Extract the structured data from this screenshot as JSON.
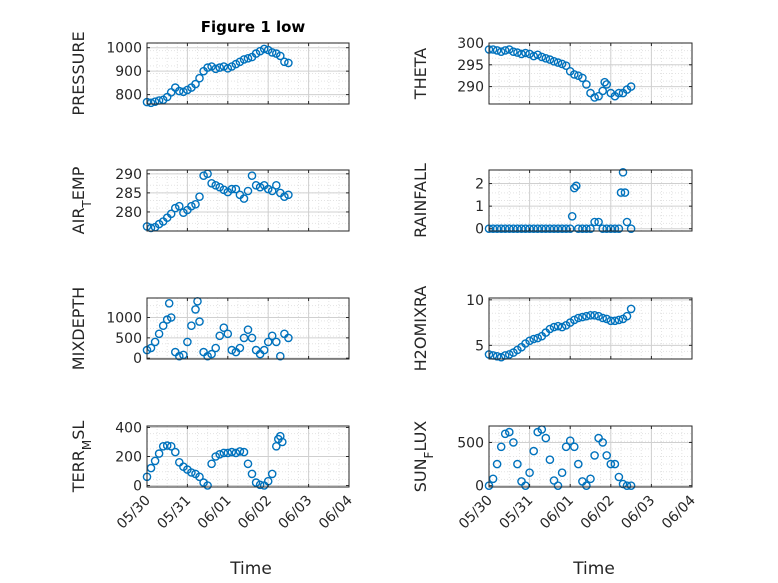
{
  "figure": {
    "title": "Figure 1 low",
    "xlabel": "Time"
  },
  "colors": {
    "marker": "#0072BD",
    "axis": "#262626",
    "grid": "#d0d0d0",
    "background": "#ffffff"
  },
  "chart_data": [
    {
      "type": "scatter",
      "name": "PRESSURE",
      "ylabel": "PRESSURE",
      "title": "Figure 1 low",
      "xlim": [
        0,
        5
      ],
      "ylim": [
        760,
        1020
      ],
      "yticks": [
        800,
        900,
        1000
      ],
      "ytick_labels": [
        "800",
        "900",
        "1000"
      ],
      "xticks": [
        0,
        1,
        2,
        3,
        4,
        5
      ],
      "xtick_labels": [],
      "grid": true,
      "minor_grid": true,
      "x": [
        0,
        0.1,
        0.2,
        0.3,
        0.4,
        0.5,
        0.6,
        0.7,
        0.8,
        0.9,
        1.0,
        1.1,
        1.2,
        1.3,
        1.4,
        1.5,
        1.6,
        1.7,
        1.8,
        1.9,
        2.0,
        2.1,
        2.2,
        2.3,
        2.4,
        2.5,
        2.6,
        2.7,
        2.8,
        2.9,
        3.0,
        3.1,
        3.2,
        3.3,
        3.4,
        3.5
      ],
      "y": [
        768,
        765,
        770,
        775,
        778,
        790,
        810,
        830,
        815,
        812,
        820,
        830,
        845,
        870,
        900,
        915,
        920,
        910,
        915,
        920,
        912,
        920,
        930,
        940,
        950,
        955,
        960,
        975,
        985,
        995,
        990,
        980,
        975,
        965,
        940,
        935
      ]
    },
    {
      "type": "scatter",
      "name": "THETA",
      "ylabel": "THETA",
      "xlim": [
        0,
        5
      ],
      "ylim": [
        286,
        300
      ],
      "yticks": [
        290,
        295,
        300
      ],
      "ytick_labels": [
        "290",
        "295",
        "300"
      ],
      "xticks": [
        0,
        1,
        2,
        3,
        4,
        5
      ],
      "xtick_labels": [],
      "grid": true,
      "minor_grid": true,
      "x": [
        0,
        0.1,
        0.2,
        0.3,
        0.4,
        0.5,
        0.6,
        0.7,
        0.8,
        0.9,
        1.0,
        1.1,
        1.2,
        1.3,
        1.4,
        1.5,
        1.6,
        1.7,
        1.8,
        1.9,
        2.0,
        2.1,
        2.2,
        2.3,
        2.4,
        2.5,
        2.6,
        2.7,
        2.8,
        2.85,
        2.9,
        3.0,
        3.1,
        3.2,
        3.3,
        3.4,
        3.5
      ],
      "y": [
        298.5,
        298.5,
        298.3,
        298.0,
        298.3,
        298.5,
        298.0,
        297.8,
        297.5,
        297.7,
        297.5,
        297.0,
        297.3,
        296.8,
        296.5,
        296.2,
        295.8,
        295.5,
        295.2,
        294.8,
        293.5,
        292.8,
        292.5,
        292.0,
        290.5,
        288.5,
        287.5,
        287.8,
        289.0,
        291.0,
        290.5,
        288.5,
        287.8,
        288.5,
        288.5,
        289.3,
        290.0
      ]
    },
    {
      "type": "scatter",
      "name": "AIR_TEMP",
      "ylabel": "AIR_TEMP",
      "xlim": [
        0,
        5
      ],
      "ylim": [
        275,
        291
      ],
      "yticks": [
        280,
        285,
        290
      ],
      "ytick_labels": [
        "280",
        "285",
        "290"
      ],
      "xticks": [
        0,
        1,
        2,
        3,
        4,
        5
      ],
      "xtick_labels": [],
      "grid": true,
      "minor_grid": true,
      "x": [
        0,
        0.1,
        0.2,
        0.3,
        0.4,
        0.5,
        0.6,
        0.7,
        0.8,
        0.9,
        1.0,
        1.1,
        1.2,
        1.3,
        1.4,
        1.5,
        1.6,
        1.7,
        1.8,
        1.9,
        2.0,
        2.1,
        2.2,
        2.3,
        2.4,
        2.5,
        2.6,
        2.7,
        2.8,
        2.9,
        3.0,
        3.1,
        3.2,
        3.3,
        3.4,
        3.5
      ],
      "y": [
        276.2,
        275.8,
        276.0,
        276.8,
        277.5,
        278.5,
        279.5,
        281.0,
        281.5,
        279.8,
        280.5,
        281.5,
        282.0,
        284.0,
        289.5,
        290.0,
        287.5,
        287.0,
        286.5,
        285.8,
        285.2,
        286.0,
        286.0,
        284.5,
        283.5,
        285.5,
        289.5,
        287.0,
        286.5,
        287.0,
        286.0,
        285.5,
        287.0,
        285.0,
        284.0,
        284.5
      ]
    },
    {
      "type": "scatter",
      "name": "RAINFALL",
      "ylabel": "RAINFALL",
      "xlim": [
        0,
        5
      ],
      "ylim": [
        -0.1,
        2.6
      ],
      "yticks": [
        0,
        1,
        2
      ],
      "ytick_labels": [
        "0",
        "1",
        "2"
      ],
      "xticks": [
        0,
        1,
        2,
        3,
        4,
        5
      ],
      "xtick_labels": [],
      "grid": true,
      "minor_grid": true,
      "x": [
        0,
        0.1,
        0.2,
        0.3,
        0.4,
        0.5,
        0.6,
        0.7,
        0.8,
        0.9,
        1.0,
        1.1,
        1.2,
        1.3,
        1.4,
        1.5,
        1.6,
        1.7,
        1.8,
        1.9,
        2.0,
        2.05,
        2.1,
        2.15,
        2.2,
        2.3,
        2.4,
        2.5,
        2.6,
        2.7,
        2.8,
        2.9,
        3.0,
        3.1,
        3.2,
        3.25,
        3.3,
        3.35,
        3.4,
        3.5
      ],
      "y": [
        0,
        0,
        0,
        0,
        0,
        0,
        0,
        0,
        0,
        0,
        0,
        0,
        0,
        0,
        0,
        0,
        0,
        0,
        0,
        0,
        0,
        0.55,
        1.8,
        1.9,
        0,
        0,
        0,
        0,
        0.3,
        0.3,
        0,
        0,
        0,
        0,
        0,
        1.6,
        2.5,
        1.6,
        0.3,
        0
      ]
    },
    {
      "type": "scatter",
      "name": "MIXDEPTH",
      "ylabel": "MIXDEPTH",
      "xlim": [
        0,
        5
      ],
      "ylim": [
        -20,
        1480
      ],
      "yticks": [
        0,
        500,
        1000
      ],
      "ytick_labels": [
        "0",
        "500",
        "1000"
      ],
      "xticks": [
        0,
        1,
        2,
        3,
        4,
        5
      ],
      "xtick_labels": [],
      "grid": true,
      "minor_grid": true,
      "x": [
        0,
        0.1,
        0.2,
        0.3,
        0.4,
        0.5,
        0.55,
        0.6,
        0.7,
        0.8,
        0.9,
        1.0,
        1.1,
        1.2,
        1.25,
        1.3,
        1.4,
        1.5,
        1.6,
        1.7,
        1.8,
        1.9,
        2.0,
        2.1,
        2.2,
        2.3,
        2.4,
        2.5,
        2.6,
        2.7,
        2.8,
        2.9,
        3.0,
        3.1,
        3.2,
        3.3,
        3.4,
        3.5
      ],
      "y": [
        200,
        250,
        400,
        600,
        800,
        950,
        1350,
        1000,
        150,
        50,
        80,
        400,
        800,
        1200,
        1400,
        900,
        150,
        50,
        100,
        250,
        550,
        750,
        600,
        200,
        150,
        250,
        500,
        700,
        500,
        200,
        100,
        200,
        400,
        550,
        400,
        50,
        600,
        500
      ]
    },
    {
      "type": "scatter",
      "name": "H2OMIXRA",
      "ylabel": "H2OMIXRA",
      "xlim": [
        0,
        5
      ],
      "ylim": [
        3.5,
        10.2
      ],
      "yticks": [
        5,
        10
      ],
      "ytick_labels": [
        "5",
        "10"
      ],
      "xticks": [
        0,
        1,
        2,
        3,
        4,
        5
      ],
      "xtick_labels": [],
      "grid": true,
      "minor_grid": true,
      "x": [
        0,
        0.1,
        0.2,
        0.3,
        0.4,
        0.5,
        0.6,
        0.7,
        0.8,
        0.9,
        1.0,
        1.1,
        1.2,
        1.3,
        1.4,
        1.5,
        1.6,
        1.7,
        1.8,
        1.9,
        2.0,
        2.1,
        2.2,
        2.3,
        2.4,
        2.5,
        2.6,
        2.7,
        2.8,
        2.9,
        3.0,
        3.1,
        3.2,
        3.3,
        3.4,
        3.5
      ],
      "y": [
        4.0,
        3.9,
        3.8,
        3.7,
        3.9,
        4.0,
        4.2,
        4.5,
        4.8,
        5.2,
        5.5,
        5.7,
        5.8,
        6.0,
        6.4,
        6.8,
        7.0,
        7.1,
        7.0,
        7.2,
        7.5,
        7.8,
        8.0,
        8.1,
        8.2,
        8.3,
        8.3,
        8.2,
        8.0,
        7.9,
        7.7,
        7.7,
        7.8,
        7.9,
        8.2,
        9.0
      ]
    },
    {
      "type": "scatter",
      "name": "TERR_MSL",
      "ylabel": "TERR_MSL",
      "xlim": [
        0,
        5
      ],
      "ylim": [
        -10,
        410
      ],
      "yticks": [
        0,
        200,
        400
      ],
      "ytick_labels": [
        "0",
        "200",
        "400"
      ],
      "xticks": [
        0,
        1,
        2,
        3,
        4,
        5
      ],
      "xtick_labels": [
        "05/30",
        "05/31",
        "06/01",
        "06/02",
        "06/03",
        "06/04"
      ],
      "grid": true,
      "minor_grid": true,
      "x": [
        0,
        0.1,
        0.2,
        0.3,
        0.4,
        0.5,
        0.6,
        0.7,
        0.8,
        0.9,
        1.0,
        1.1,
        1.2,
        1.3,
        1.4,
        1.5,
        1.6,
        1.7,
        1.8,
        1.9,
        2.0,
        2.1,
        2.2,
        2.3,
        2.4,
        2.5,
        2.6,
        2.7,
        2.8,
        2.9,
        3.0,
        3.1,
        3.2,
        3.25,
        3.3,
        3.35
      ],
      "y": [
        60,
        120,
        170,
        220,
        270,
        275,
        270,
        230,
        160,
        130,
        110,
        90,
        80,
        60,
        20,
        0,
        150,
        200,
        215,
        225,
        225,
        230,
        225,
        235,
        230,
        150,
        80,
        20,
        5,
        0,
        30,
        80,
        270,
        320,
        340,
        300
      ]
    },
    {
      "type": "scatter",
      "name": "SUN_FLUX",
      "ylabel": "SUN_FLUX",
      "xlim": [
        0,
        5
      ],
      "ylim": [
        -15,
        690
      ],
      "yticks": [
        0,
        500
      ],
      "ytick_labels": [
        "0",
        "500"
      ],
      "xticks": [
        0,
        1,
        2,
        3,
        4,
        5
      ],
      "xtick_labels": [
        "05/30",
        "05/31",
        "06/01",
        "06/02",
        "06/03",
        "06/04"
      ],
      "grid": true,
      "minor_grid": true,
      "x": [
        0,
        0.1,
        0.2,
        0.3,
        0.4,
        0.5,
        0.6,
        0.7,
        0.8,
        0.9,
        1.0,
        1.1,
        1.2,
        1.3,
        1.4,
        1.5,
        1.6,
        1.7,
        1.8,
        1.9,
        2.0,
        2.1,
        2.2,
        2.3,
        2.4,
        2.5,
        2.6,
        2.7,
        2.8,
        2.9,
        3.0,
        3.1,
        3.2,
        3.3,
        3.4,
        3.5
      ],
      "y": [
        0,
        80,
        250,
        450,
        600,
        620,
        500,
        250,
        50,
        0,
        150,
        400,
        620,
        650,
        550,
        300,
        60,
        0,
        150,
        450,
        520,
        450,
        250,
        50,
        0,
        80,
        350,
        550,
        500,
        350,
        250,
        250,
        100,
        20,
        0,
        0
      ]
    }
  ]
}
